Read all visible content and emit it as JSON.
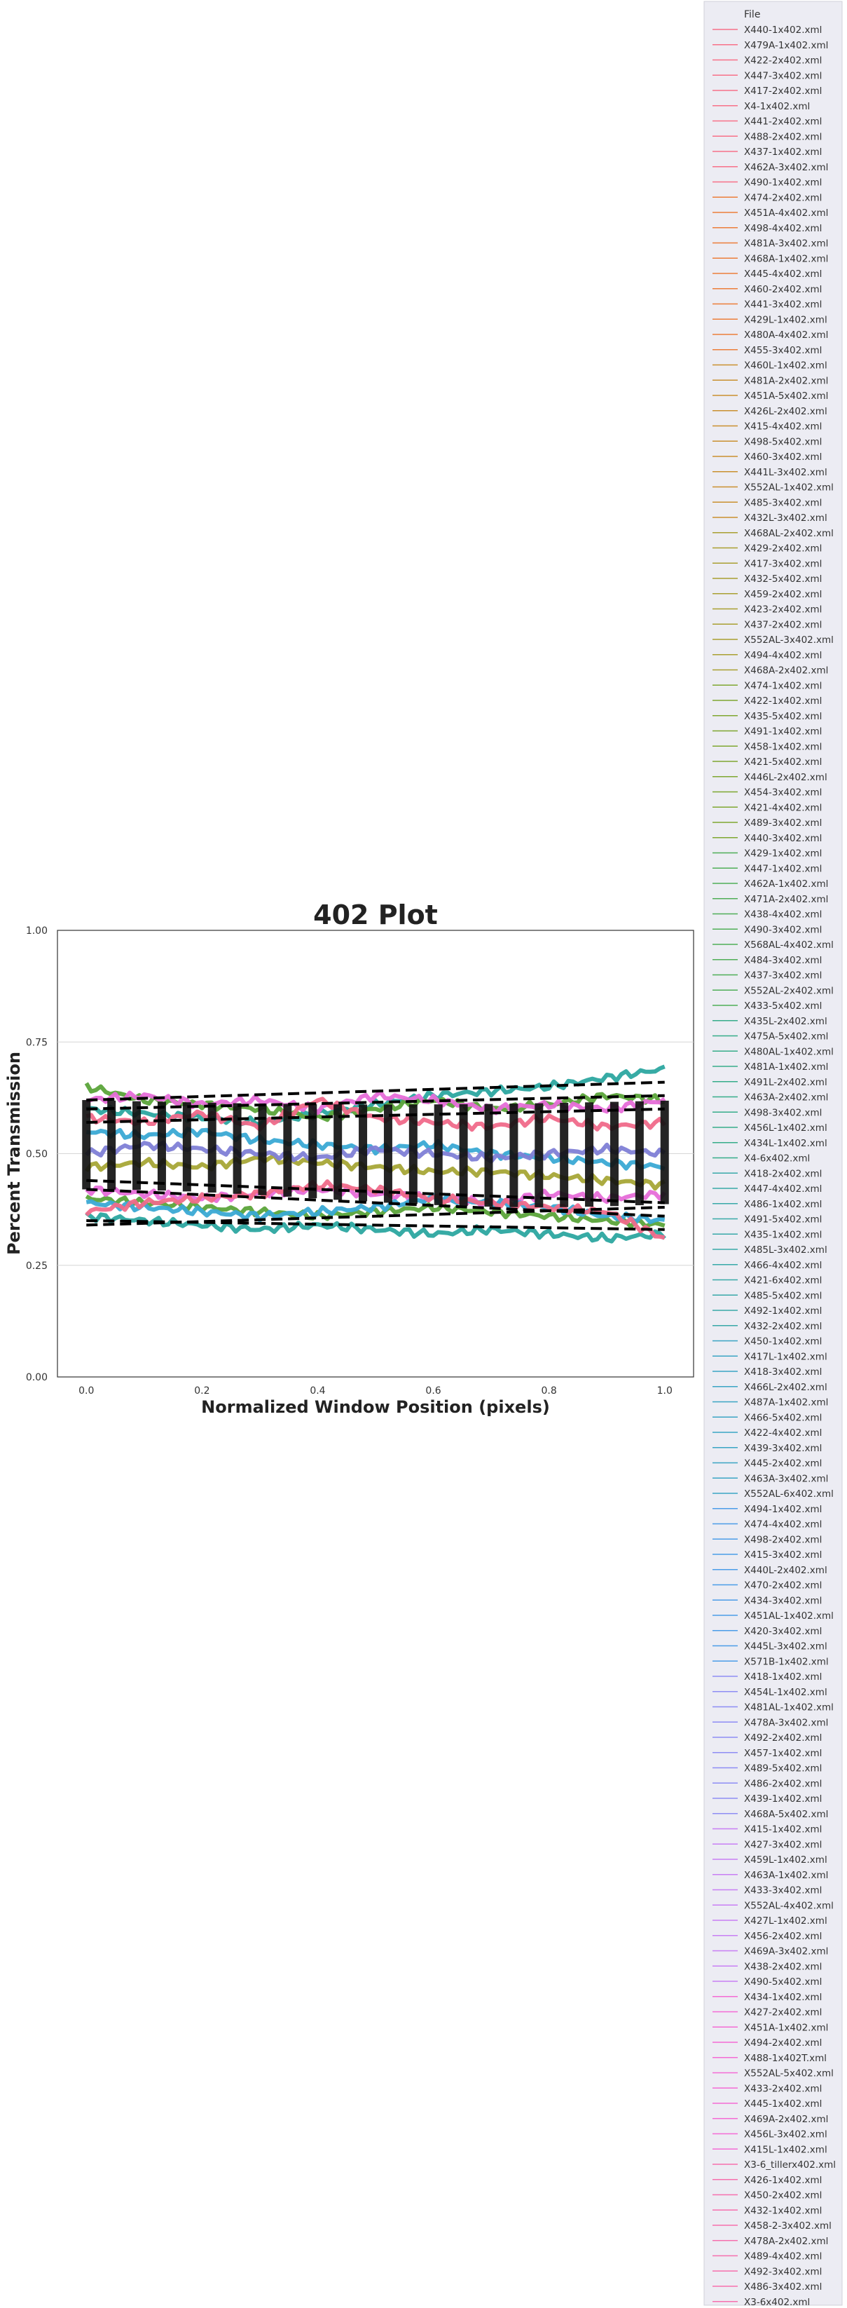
{
  "chart_data": {
    "type": "line",
    "title": "402 Plot",
    "xlabel": "Normalized Window Position (pixels)",
    "ylabel": "Percent Transmission",
    "xlim": [
      -0.05,
      1.05
    ],
    "ylim": [
      0.0,
      1.0
    ],
    "xticks": [
      "0.0",
      "0.2",
      "0.4",
      "0.6",
      "0.8",
      "1.0"
    ],
    "yticks": [
      "0.00",
      "0.25",
      "0.50",
      "0.75",
      "1.00"
    ],
    "grid": true,
    "legend_position": "right",
    "legend_title": "File",
    "legend": [
      "X440-1x402.xml",
      "X479A-1x402.xml",
      "X422-2x402.xml",
      "X447-3x402.xml",
      "X417-2x402.xml",
      "X4-1x402.xml",
      "X441-2x402.xml",
      "X488-2x402.xml",
      "X437-1x402.xml",
      "X462A-3x402.xml",
      "X490-1x402.xml",
      "X474-2x402.xml",
      "X451A-4x402.xml",
      "X498-4x402.xml",
      "X481A-3x402.xml",
      "X468A-1x402.xml",
      "X445-4x402.xml",
      "X460-2x402.xml",
      "X441-3x402.xml",
      "X429L-1x402.xml",
      "X480A-4x402.xml",
      "X455-3x402.xml",
      "X460L-1x402.xml",
      "X481A-2x402.xml",
      "X451A-5x402.xml",
      "X426L-2x402.xml",
      "X415-4x402.xml",
      "X498-5x402.xml",
      "X460-3x402.xml",
      "X441L-3x402.xml",
      "X552AL-1x402.xml",
      "X485-3x402.xml",
      "X432L-3x402.xml",
      "X468AL-2x402.xml",
      "X429-2x402.xml",
      "X417-3x402.xml",
      "X432-5x402.xml",
      "X459-2x402.xml",
      "X423-2x402.xml",
      "X437-2x402.xml",
      "X552AL-3x402.xml",
      "X494-4x402.xml",
      "X468A-2x402.xml",
      "X474-1x402.xml",
      "X422-1x402.xml",
      "X435-5x402.xml",
      "X491-1x402.xml",
      "X458-1x402.xml",
      "X421-5x402.xml",
      "X446L-2x402.xml",
      "X454-3x402.xml",
      "X421-4x402.xml",
      "X489-3x402.xml",
      "X440-3x402.xml",
      "X429-1x402.xml",
      "X447-1x402.xml",
      "X462A-1x402.xml",
      "X471A-2x402.xml",
      "X438-4x402.xml",
      "X490-3x402.xml",
      "X568AL-4x402.xml",
      "X484-3x402.xml",
      "X437-3x402.xml",
      "X552AL-2x402.xml",
      "X433-5x402.xml",
      "X435L-2x402.xml",
      "X475A-5x402.xml",
      "X480AL-1x402.xml",
      "X481A-1x402.xml",
      "X491L-2x402.xml",
      "X463A-2x402.xml",
      "X498-3x402.xml",
      "X456L-1x402.xml",
      "X434L-1x402.xml",
      "X4-6x402.xml",
      "X418-2x402.xml",
      "X447-4x402.xml",
      "X486-1x402.xml",
      "X491-5x402.xml",
      "X435-1x402.xml",
      "X485L-3x402.xml",
      "X466-4x402.xml",
      "X421-6x402.xml",
      "X485-5x402.xml",
      "X492-1x402.xml",
      "X432-2x402.xml",
      "X450-1x402.xml",
      "X417L-1x402.xml",
      "X418-3x402.xml",
      "X466L-2x402.xml",
      "X487A-1x402.xml",
      "X466-5x402.xml",
      "X422-4x402.xml",
      "X439-3x402.xml",
      "X445-2x402.xml",
      "X463A-3x402.xml",
      "X552AL-6x402.xml",
      "X494-1x402.xml",
      "X474-4x402.xml",
      "X498-2x402.xml",
      "X415-3x402.xml",
      "X440L-2x402.xml",
      "X470-2x402.xml",
      "X434-3x402.xml",
      "X451AL-1x402.xml",
      "X420-3x402.xml",
      "X445L-3x402.xml",
      "X571B-1x402.xml",
      "X418-1x402.xml",
      "X454L-1x402.xml",
      "X481AL-1x402.xml",
      "X478A-3x402.xml",
      "X492-2x402.xml",
      "X457-1x402.xml",
      "X489-5x402.xml",
      "X486-2x402.xml",
      "X439-1x402.xml",
      "X468A-5x402.xml",
      "X415-1x402.xml",
      "X427-3x402.xml",
      "X459L-1x402.xml",
      "X463A-1x402.xml",
      "X433-3x402.xml",
      "X552AL-4x402.xml",
      "X427L-1x402.xml",
      "X456-2x402.xml",
      "X469A-3x402.xml",
      "X438-2x402.xml",
      "X490-5x402.xml",
      "X434-1x402.xml",
      "X427-2x402.xml",
      "X451A-1x402.xml",
      "X494-2x402.xml",
      "X488-1x402T.xml",
      "X552AL-5x402.xml",
      "X433-2x402.xml",
      "X445-1x402.xml",
      "X469A-2x402.xml",
      "X456L-3x402.xml",
      "X415L-1x402.xml",
      "X3-6_tillerx402.xml",
      "X426-1x402.xml",
      "X450-2x402.xml",
      "X432-1x402.xml",
      "X458-2-3x402.xml",
      "X478A-2x402.xml",
      "X489-4x402.xml",
      "X492-3x402.xml",
      "X486-3x402.xml",
      "X3-6x402.xml"
    ],
    "series": [
      {
        "color": "#2ca7a0",
        "x": [
          0,
          0.1,
          0.2,
          0.3,
          0.4,
          0.5,
          0.6,
          0.7,
          0.8,
          0.9,
          1.0
        ],
        "y": [
          0.6,
          0.59,
          0.58,
          0.57,
          0.59,
          0.61,
          0.63,
          0.64,
          0.65,
          0.67,
          0.69
        ]
      },
      {
        "color": "#5ba43a",
        "x": [
          0,
          0.1,
          0.2,
          0.3,
          0.4,
          0.5,
          0.6,
          0.7,
          0.8,
          0.9,
          1.0
        ],
        "y": [
          0.65,
          0.62,
          0.61,
          0.6,
          0.58,
          0.6,
          0.62,
          0.6,
          0.61,
          0.63,
          0.62
        ]
      },
      {
        "color": "#e66dd8",
        "x": [
          0,
          0.1,
          0.2,
          0.3,
          0.4,
          0.5,
          0.6,
          0.7,
          0.8,
          0.9,
          1.0
        ],
        "y": [
          0.62,
          0.63,
          0.61,
          0.62,
          0.6,
          0.63,
          0.62,
          0.6,
          0.61,
          0.6,
          0.62
        ]
      },
      {
        "color": "#f06a8a",
        "x": [
          0,
          0.1,
          0.2,
          0.3,
          0.4,
          0.5,
          0.6,
          0.7,
          0.8,
          0.9,
          1.0
        ],
        "y": [
          0.58,
          0.57,
          0.59,
          0.56,
          0.62,
          0.58,
          0.57,
          0.56,
          0.58,
          0.56,
          0.57
        ]
      },
      {
        "color": "#3aa9d4",
        "x": [
          0,
          0.1,
          0.2,
          0.3,
          0.4,
          0.5,
          0.6,
          0.7,
          0.8,
          0.9,
          1.0
        ],
        "y": [
          0.55,
          0.54,
          0.55,
          0.53,
          0.52,
          0.51,
          0.52,
          0.5,
          0.49,
          0.48,
          0.47
        ]
      },
      {
        "color": "#a6a637",
        "x": [
          0,
          0.1,
          0.2,
          0.3,
          0.4,
          0.5,
          0.6,
          0.7,
          0.8,
          0.9,
          1.0
        ],
        "y": [
          0.47,
          0.48,
          0.47,
          0.49,
          0.48,
          0.47,
          0.46,
          0.46,
          0.45,
          0.44,
          0.43
        ]
      },
      {
        "color": "#5ba43a",
        "x": [
          0,
          0.1,
          0.2,
          0.3,
          0.4,
          0.5,
          0.6,
          0.7,
          0.8,
          0.9,
          1.0
        ],
        "y": [
          0.4,
          0.39,
          0.38,
          0.37,
          0.36,
          0.37,
          0.38,
          0.37,
          0.36,
          0.35,
          0.34
        ]
      },
      {
        "color": "#e66dd8",
        "x": [
          0,
          0.1,
          0.2,
          0.3,
          0.4,
          0.5,
          0.6,
          0.7,
          0.8,
          0.9,
          1.0
        ],
        "y": [
          0.42,
          0.41,
          0.4,
          0.41,
          0.42,
          0.41,
          0.4,
          0.39,
          0.41,
          0.4,
          0.41
        ]
      },
      {
        "color": "#3aa9d4",
        "x": [
          0,
          0.1,
          0.2,
          0.3,
          0.4,
          0.5,
          0.6,
          0.7,
          0.8,
          0.9,
          1.0
        ],
        "y": [
          0.39,
          0.38,
          0.37,
          0.36,
          0.37,
          0.38,
          0.4,
          0.39,
          0.38,
          0.36,
          0.35
        ]
      },
      {
        "color": "#2ca7a0",
        "x": [
          0,
          0.1,
          0.2,
          0.3,
          0.4,
          0.5,
          0.6,
          0.7,
          0.8,
          0.9,
          1.0
        ],
        "y": [
          0.36,
          0.35,
          0.34,
          0.33,
          0.34,
          0.33,
          0.32,
          0.33,
          0.32,
          0.31,
          0.32
        ]
      },
      {
        "color": "#f06a8a",
        "x": [
          0,
          0.1,
          0.2,
          0.3,
          0.4,
          0.5,
          0.6,
          0.7,
          0.8,
          0.9,
          1.0
        ],
        "y": [
          0.37,
          0.39,
          0.4,
          0.41,
          0.43,
          0.42,
          0.4,
          0.39,
          0.38,
          0.37,
          0.31
        ]
      },
      {
        "color": "#7f7fd6",
        "x": [
          0,
          0.1,
          0.2,
          0.3,
          0.4,
          0.5,
          0.6,
          0.7,
          0.8,
          0.9,
          1.0
        ],
        "y": [
          0.5,
          0.52,
          0.51,
          0.5,
          0.49,
          0.51,
          0.5,
          0.49,
          0.5,
          0.51,
          0.5
        ]
      }
    ],
    "fit_lines": [
      {
        "x": [
          0,
          1.0
        ],
        "y": [
          0.62,
          0.66
        ]
      },
      {
        "x": [
          0,
          1.0
        ],
        "y": [
          0.6,
          0.63
        ]
      },
      {
        "x": [
          0,
          1.0
        ],
        "y": [
          0.57,
          0.6
        ]
      },
      {
        "x": [
          0,
          1.0
        ],
        "y": [
          0.44,
          0.39
        ]
      },
      {
        "x": [
          0,
          1.0
        ],
        "y": [
          0.42,
          0.36
        ]
      },
      {
        "x": [
          0,
          1.0
        ],
        "y": [
          0.35,
          0.33
        ]
      },
      {
        "x": [
          0,
          1.0
        ],
        "y": [
          0.34,
          0.38
        ]
      }
    ]
  },
  "palette": [
    "#f77189",
    "#ec7e3a",
    "#c9902f",
    "#a99f31",
    "#7fa731",
    "#4fae57",
    "#36ad8a",
    "#38a9a8",
    "#3aa5c4",
    "#4b9de8",
    "#8e8df4",
    "#c87ff4",
    "#f46bd5",
    "#f670ae"
  ]
}
